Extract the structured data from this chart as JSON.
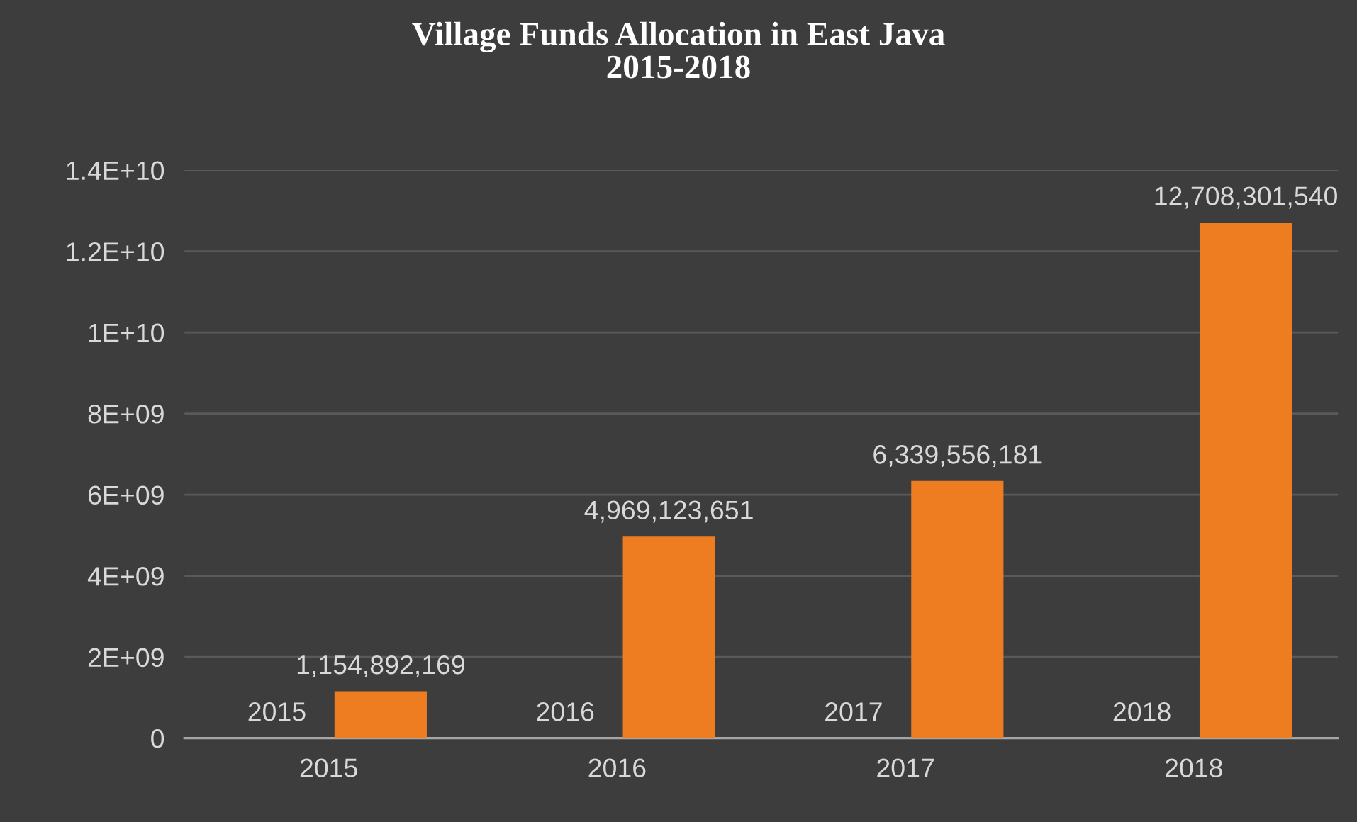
{
  "chart_data": {
    "type": "bar",
    "title": "Village Funds Allocation in East Java\n2015-2018",
    "categories": [
      "2015",
      "2016",
      "2017",
      "2018"
    ],
    "series": [
      {
        "color": "#5b9bd5",
        "values": [
          2015,
          2016,
          2017,
          2018
        ],
        "value_labels": [
          "2015",
          "2016",
          "2017",
          "2018"
        ]
      },
      {
        "color": "#ee7d22",
        "values": [
          1154892169,
          4969123651,
          6339556181,
          12708301540
        ],
        "value_labels": [
          "1,154,892,169",
          "4,969,123,651",
          "6,339,556,181",
          "12,708,301,540"
        ]
      }
    ],
    "ylim": [
      0,
      14000000000
    ],
    "yticks": [
      0,
      {
        "value": 2000000000,
        "label": "2E+09"
      },
      {
        "value": 4000000000,
        "label": "4E+09"
      },
      {
        "value": 6000000000,
        "label": "6E+09"
      },
      {
        "value": 8000000000,
        "label": "8E+09"
      },
      {
        "value": 10000000000,
        "label": "1E+10"
      },
      {
        "value": 12000000000,
        "label": "1.2E+10"
      },
      {
        "value": 14000000000,
        "label": "1.4E+10"
      }
    ],
    "grid": "y",
    "legend": false
  }
}
